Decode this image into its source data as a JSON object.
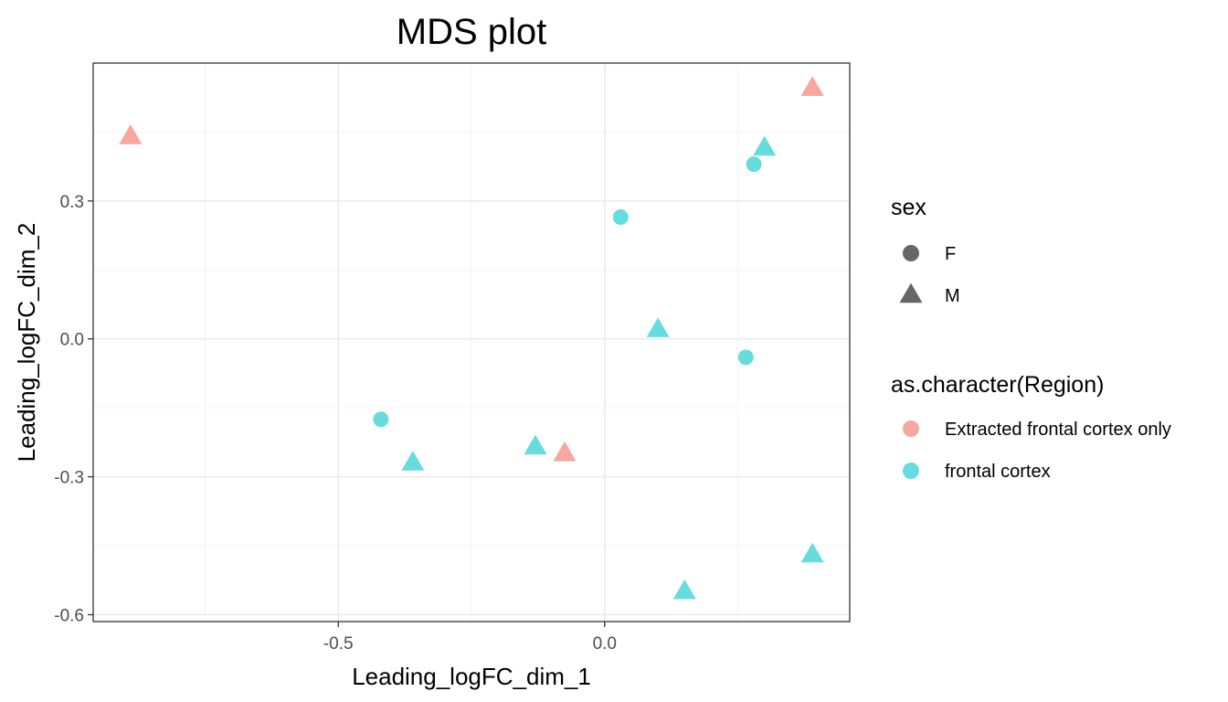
{
  "chart_data": {
    "type": "scatter",
    "title": "MDS plot",
    "xlabel": "Leading_logFC_dim_1",
    "ylabel": "Leading_logFC_dim_2",
    "xlim": [
      -0.96,
      0.46
    ],
    "ylim": [
      -0.615,
      0.6
    ],
    "x_ticks": [
      -0.5,
      0.0
    ],
    "x_tick_labels": [
      "-0.5",
      "0.0"
    ],
    "y_ticks": [
      -0.6,
      -0.3,
      0.0,
      0.3
    ],
    "y_tick_labels": [
      "-0.6",
      "-0.3",
      "0.0",
      "0.3"
    ],
    "grid": true,
    "legend_position": "right",
    "legends": [
      {
        "title": "sex",
        "entries": [
          {
            "label": "F",
            "shape": "circle"
          },
          {
            "label": "M",
            "shape": "triangle"
          }
        ]
      },
      {
        "title": "as.character(Region)",
        "entries": [
          {
            "label": "Extracted frontal cortex only",
            "color": "#F8A6A0"
          },
          {
            "label": "frontal cortex",
            "color": "#66DCDE"
          }
        ]
      }
    ],
    "colors": {
      "Extracted frontal cortex only": "#F8A6A0",
      "frontal cortex": "#66DCDE",
      "sex_key": "#666666"
    },
    "series": [
      {
        "name": "Extracted frontal cortex only",
        "points": [
          {
            "x": -0.89,
            "y": 0.44,
            "sex": "M"
          },
          {
            "x": 0.39,
            "y": 0.545,
            "sex": "M"
          },
          {
            "x": -0.075,
            "y": -0.25,
            "sex": "M"
          }
        ]
      },
      {
        "name": "frontal cortex",
        "points": [
          {
            "x": -0.42,
            "y": -0.175,
            "sex": "F"
          },
          {
            "x": 0.03,
            "y": 0.265,
            "sex": "F"
          },
          {
            "x": 0.28,
            "y": 0.38,
            "sex": "F"
          },
          {
            "x": 0.265,
            "y": -0.04,
            "sex": "F"
          },
          {
            "x": -0.36,
            "y": -0.27,
            "sex": "M"
          },
          {
            "x": -0.13,
            "y": -0.235,
            "sex": "M"
          },
          {
            "x": 0.1,
            "y": 0.02,
            "sex": "M"
          },
          {
            "x": 0.3,
            "y": 0.415,
            "sex": "M"
          },
          {
            "x": 0.15,
            "y": -0.55,
            "sex": "M"
          },
          {
            "x": 0.39,
            "y": -0.47,
            "sex": "M"
          }
        ]
      }
    ]
  }
}
